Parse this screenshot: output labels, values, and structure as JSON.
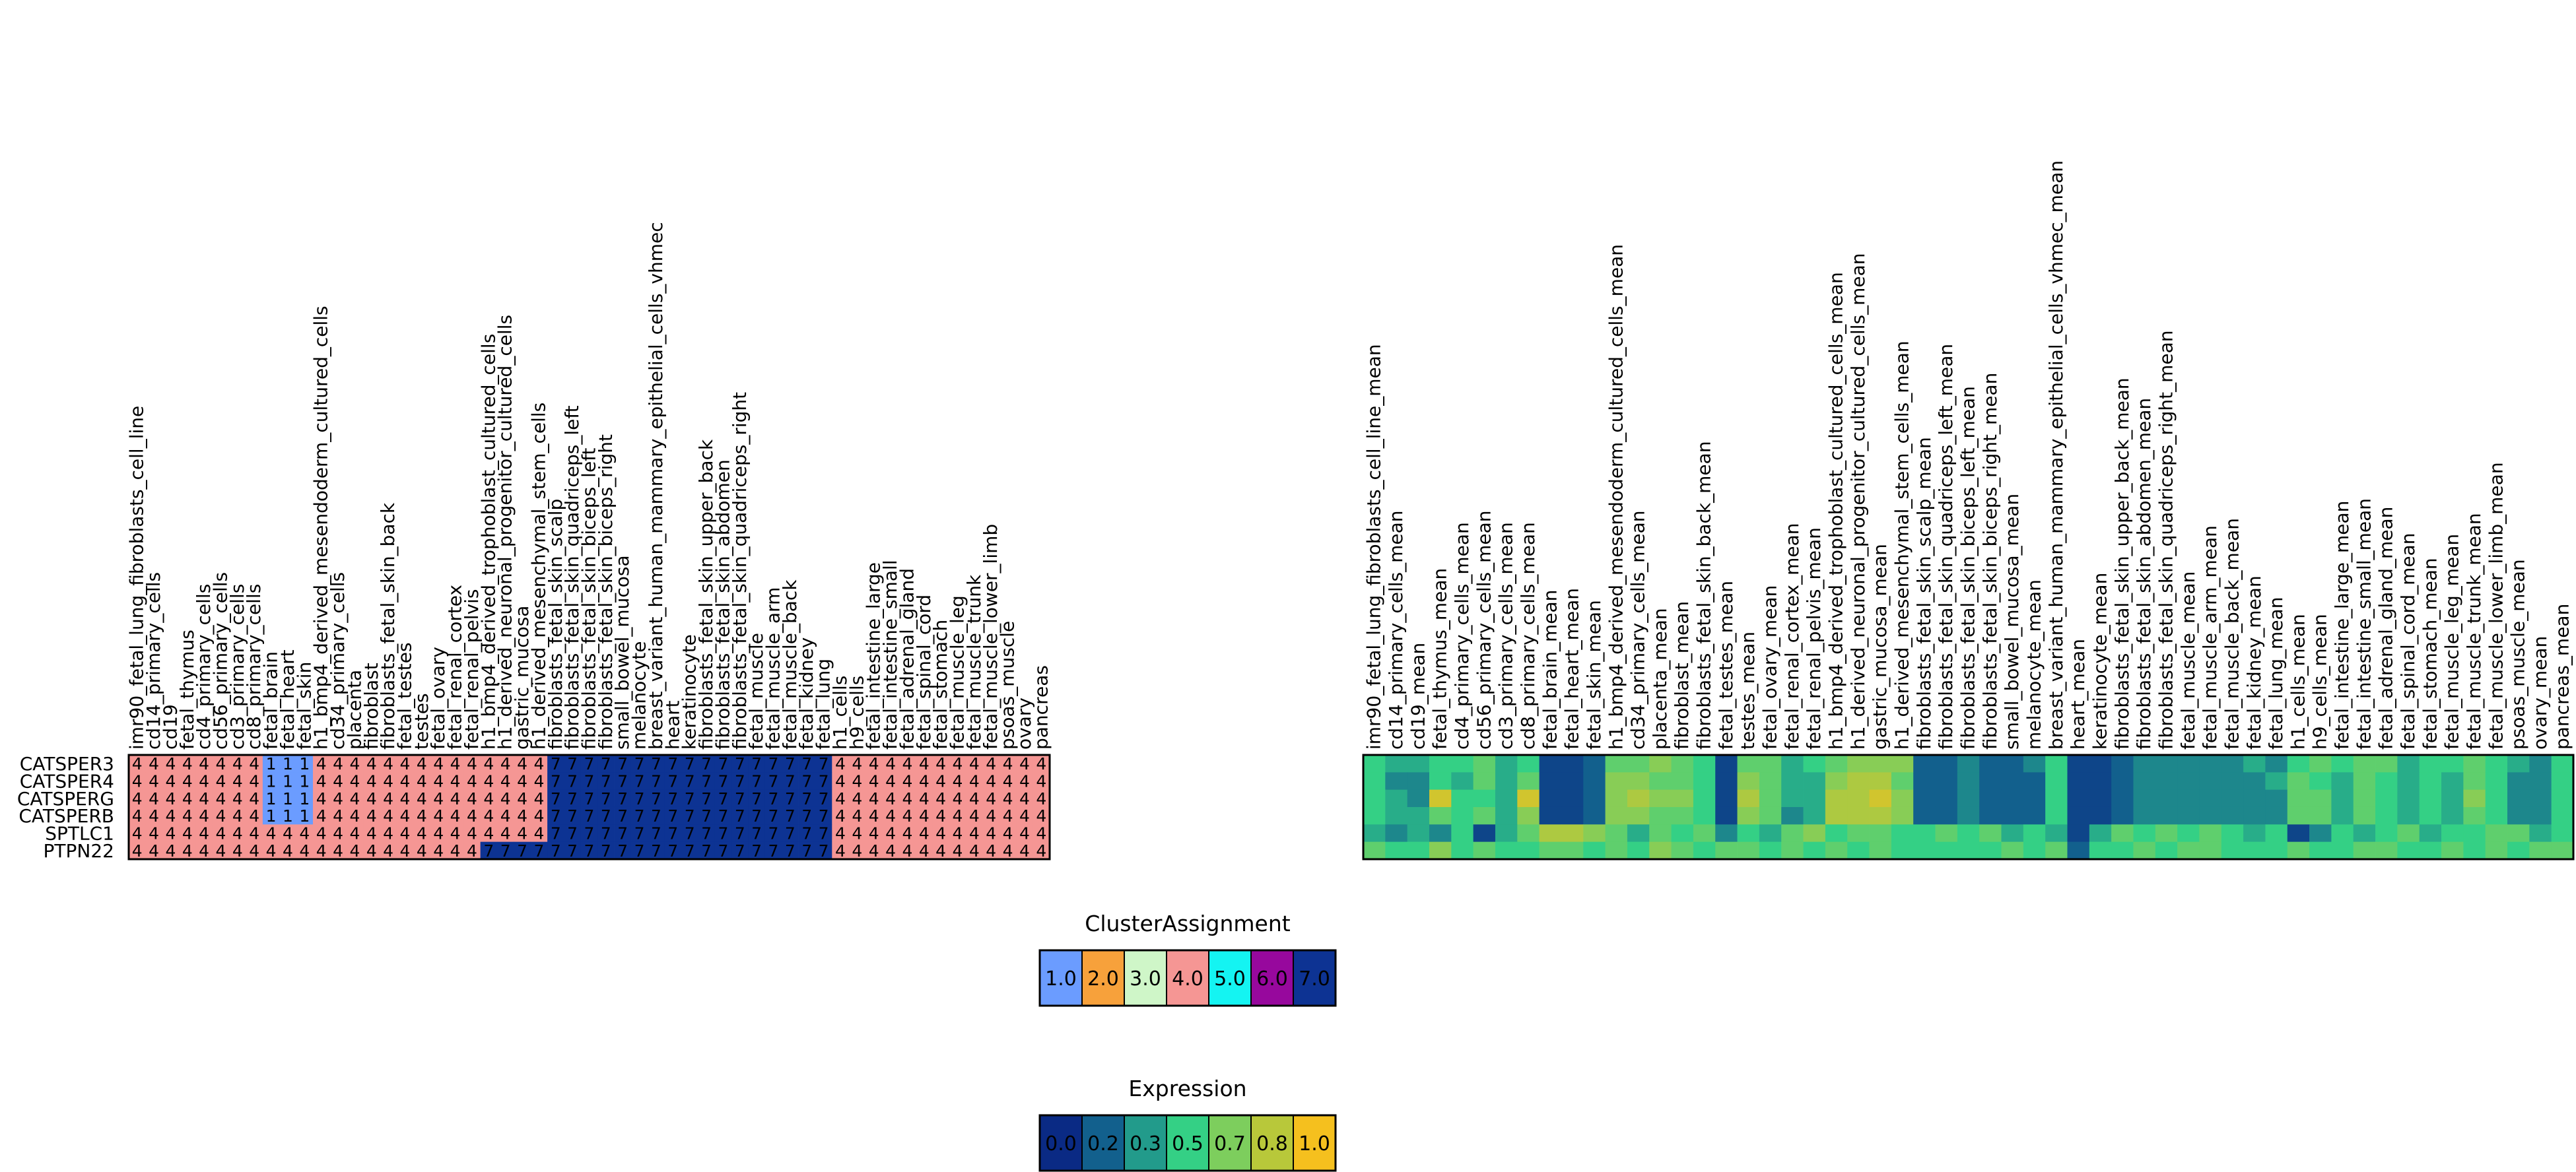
{
  "chart_data": [
    {
      "type": "heatmap",
      "title": "",
      "rows": [
        "CATSPER3",
        "CATSPER4",
        "CATSPERG",
        "CATSPERB",
        "SPTLC1",
        "PTPN22"
      ],
      "columns": [
        "imr90_fetal_lung_fibroblasts_cell_line",
        "cd14_primary_cells",
        "cd19",
        "fetal_thymus",
        "cd4_primary_cells",
        "cd56_primary_cells",
        "cd3_primary_cells",
        "cd8_primary_cells",
        "fetal_brain",
        "fetal_heart",
        "fetal_skin",
        "h1_bmp4_derived_mesendoderm_cultured_cells",
        "cd34_primary_cells",
        "placenta",
        "fibroblast",
        "fibroblasts_fetal_skin_back",
        "fetal_testes",
        "testes",
        "fetal_ovary",
        "fetal_renal_cortex",
        "fetal_renal_pelvis",
        "h1_bmp4_derived_trophoblast_cultured_cells",
        "h1_derived_neuronal_progenitor_cultured_cells",
        "gastric_mucosa",
        "h1_derived_mesenchymal_stem_cells",
        "fibroblasts_fetal_skin_scalp",
        "fibroblasts_fetal_skin_quadriceps_left",
        "fibroblasts_fetal_skin_biceps_left",
        "fibroblasts_fetal_skin_biceps_right",
        "small_bowel_mucosa",
        "melanocyte",
        "breast_variant_human_mammary_epithelial_cells_vhmec",
        "heart",
        "keratinocyte",
        "fibroblasts_fetal_skin_upper_back",
        "fibroblasts_fetal_skin_abdomen",
        "fibroblasts_fetal_skin_quadriceps_right",
        "fetal_muscle",
        "fetal_muscle_arm",
        "fetal_muscle_back",
        "fetal_kidney",
        "fetal_lung",
        "h1_cells",
        "h9_cells",
        "fetal_intestine_large",
        "fetal_intestine_small",
        "fetal_adrenal_gland",
        "fetal_spinal_cord",
        "fetal_stomach",
        "fetal_muscle_leg",
        "fetal_muscle_trunk",
        "fetal_muscle_lower_limb",
        "psoas_muscle",
        "ovary",
        "pancreas"
      ],
      "values": [
        [
          4,
          4,
          4,
          4,
          4,
          4,
          4,
          4,
          1,
          1,
          1,
          4,
          4,
          4,
          4,
          4,
          4,
          4,
          4,
          4,
          4,
          4,
          4,
          4,
          4,
          7,
          7,
          7,
          7,
          7,
          7,
          7,
          7,
          7,
          7,
          7,
          7,
          7,
          7,
          7,
          7,
          7,
          4,
          4,
          4,
          4,
          4,
          4,
          4,
          4,
          4,
          4,
          4,
          4,
          4
        ],
        [
          4,
          4,
          4,
          4,
          4,
          4,
          4,
          4,
          1,
          1,
          1,
          4,
          4,
          4,
          4,
          4,
          4,
          4,
          4,
          4,
          4,
          4,
          4,
          4,
          4,
          7,
          7,
          7,
          7,
          7,
          7,
          7,
          7,
          7,
          7,
          7,
          7,
          7,
          7,
          7,
          7,
          7,
          4,
          4,
          4,
          4,
          4,
          4,
          4,
          4,
          4,
          4,
          4,
          4,
          4
        ],
        [
          4,
          4,
          4,
          4,
          4,
          4,
          4,
          4,
          1,
          1,
          1,
          4,
          4,
          4,
          4,
          4,
          4,
          4,
          4,
          4,
          4,
          4,
          4,
          4,
          4,
          7,
          7,
          7,
          7,
          7,
          7,
          7,
          7,
          7,
          7,
          7,
          7,
          7,
          7,
          7,
          7,
          7,
          4,
          4,
          4,
          4,
          4,
          4,
          4,
          4,
          4,
          4,
          4,
          4,
          4
        ],
        [
          4,
          4,
          4,
          4,
          4,
          4,
          4,
          4,
          1,
          1,
          1,
          4,
          4,
          4,
          4,
          4,
          4,
          4,
          4,
          4,
          4,
          4,
          4,
          4,
          4,
          7,
          7,
          7,
          7,
          7,
          7,
          7,
          7,
          7,
          7,
          7,
          7,
          7,
          7,
          7,
          7,
          7,
          4,
          4,
          4,
          4,
          4,
          4,
          4,
          4,
          4,
          4,
          4,
          4,
          4
        ],
        [
          4,
          4,
          4,
          4,
          4,
          4,
          4,
          4,
          4,
          4,
          4,
          4,
          4,
          4,
          4,
          4,
          4,
          4,
          4,
          4,
          4,
          4,
          4,
          4,
          4,
          7,
          7,
          7,
          7,
          7,
          7,
          7,
          7,
          7,
          7,
          7,
          7,
          7,
          7,
          7,
          7,
          7,
          4,
          4,
          4,
          4,
          4,
          4,
          4,
          4,
          4,
          4,
          4,
          4,
          4
        ],
        [
          4,
          4,
          4,
          4,
          4,
          4,
          4,
          4,
          4,
          4,
          4,
          4,
          4,
          4,
          4,
          4,
          4,
          4,
          4,
          4,
          4,
          7,
          7,
          7,
          7,
          7,
          7,
          7,
          7,
          7,
          7,
          7,
          7,
          7,
          7,
          7,
          7,
          7,
          7,
          7,
          7,
          7,
          4,
          4,
          4,
          4,
          4,
          4,
          4,
          4,
          4,
          4,
          4,
          4,
          4
        ]
      ],
      "cell_labels": "values"
    },
    {
      "type": "heatmap",
      "title": "",
      "rows": [
        "CATSPER3",
        "CATSPER4",
        "CATSPERG",
        "CATSPERB",
        "SPTLC1",
        "PTPN22"
      ],
      "columns": [
        "imr90_fetal_lung_fibroblasts_cell_line_mean",
        "cd14_primary_cells_mean",
        "cd19_mean",
        "fetal_thymus_mean",
        "cd4_primary_cells_mean",
        "cd56_primary_cells_mean",
        "cd3_primary_cells_mean",
        "cd8_primary_cells_mean",
        "fetal_brain_mean",
        "fetal_heart_mean",
        "fetal_skin_mean",
        "h1_bmp4_derived_mesendoderm_cultured_cells_mean",
        "cd34_primary_cells_mean",
        "placenta_mean",
        "fibroblast_mean",
        "fibroblasts_fetal_skin_back_mean",
        "fetal_testes_mean",
        "testes_mean",
        "fetal_ovary_mean",
        "fetal_renal_cortex_mean",
        "fetal_renal_pelvis_mean",
        "h1_bmp4_derived_trophoblast_cultured_cells_mean",
        "h1_derived_neuronal_progenitor_cultured_cells_mean",
        "gastric_mucosa_mean",
        "h1_derived_mesenchymal_stem_cells_mean",
        "fibroblasts_fetal_skin_scalp_mean",
        "fibroblasts_fetal_skin_quadriceps_left_mean",
        "fibroblasts_fetal_skin_biceps_left_mean",
        "fibroblasts_fetal_skin_biceps_right_mean",
        "small_bowel_mucosa_mean",
        "melanocyte_mean",
        "breast_variant_human_mammary_epithelial_cells_vhmec_mean",
        "heart_mean",
        "keratinocyte_mean",
        "fibroblasts_fetal_skin_upper_back_mean",
        "fibroblasts_fetal_skin_abdomen_mean",
        "fibroblasts_fetal_skin_quadriceps_right_mean",
        "fetal_muscle_mean",
        "fetal_muscle_arm_mean",
        "fetal_muscle_back_mean",
        "fetal_kidney_mean",
        "fetal_lung_mean",
        "h1_cells_mean",
        "h9_cells_mean",
        "fetal_intestine_large_mean",
        "fetal_intestine_small_mean",
        "fetal_adrenal_gland_mean",
        "fetal_spinal_cord_mean",
        "fetal_stomach_mean",
        "fetal_muscle_leg_mean",
        "fetal_muscle_trunk_mean",
        "fetal_muscle_lower_limb_mean",
        "psoas_muscle_mean",
        "ovary_mean",
        "pancreas_mean"
      ],
      "values": [
        [
          0.5,
          0.4,
          0.4,
          0.5,
          0.5,
          0.6,
          0.4,
          0.5,
          0.1,
          0.1,
          0.2,
          0.6,
          0.6,
          0.7,
          0.6,
          0.5,
          0.1,
          0.6,
          0.6,
          0.4,
          0.5,
          0.6,
          0.7,
          0.7,
          0.7,
          0.2,
          0.2,
          0.3,
          0.2,
          0.2,
          0.3,
          0.5,
          0.1,
          0.1,
          0.2,
          0.3,
          0.3,
          0.3,
          0.3,
          0.3,
          0.4,
          0.3,
          0.5,
          0.6,
          0.5,
          0.6,
          0.6,
          0.4,
          0.5,
          0.5,
          0.6,
          0.5,
          0.4,
          0.3,
          0.5
        ],
        [
          0.5,
          0.3,
          0.3,
          0.5,
          0.4,
          0.6,
          0.4,
          0.6,
          0.1,
          0.1,
          0.2,
          0.7,
          0.7,
          0.6,
          0.6,
          0.5,
          0.1,
          0.7,
          0.6,
          0.4,
          0.4,
          0.7,
          0.8,
          0.8,
          0.6,
          0.2,
          0.2,
          0.3,
          0.2,
          0.2,
          0.2,
          0.5,
          0.1,
          0.1,
          0.2,
          0.3,
          0.3,
          0.3,
          0.3,
          0.3,
          0.3,
          0.4,
          0.6,
          0.5,
          0.4,
          0.6,
          0.5,
          0.4,
          0.5,
          0.4,
          0.6,
          0.5,
          0.3,
          0.3,
          0.5
        ],
        [
          0.5,
          0.4,
          0.3,
          0.9,
          0.5,
          0.5,
          0.4,
          0.9,
          0.1,
          0.1,
          0.2,
          0.7,
          0.8,
          0.7,
          0.7,
          0.5,
          0.1,
          0.8,
          0.6,
          0.4,
          0.4,
          0.8,
          0.8,
          0.9,
          0.7,
          0.2,
          0.2,
          0.3,
          0.2,
          0.2,
          0.2,
          0.5,
          0.1,
          0.1,
          0.2,
          0.3,
          0.3,
          0.3,
          0.3,
          0.3,
          0.3,
          0.3,
          0.6,
          0.6,
          0.4,
          0.6,
          0.5,
          0.4,
          0.5,
          0.4,
          0.7,
          0.5,
          0.3,
          0.3,
          0.5
        ],
        [
          0.5,
          0.4,
          0.4,
          0.6,
          0.5,
          0.6,
          0.4,
          0.7,
          0.1,
          0.1,
          0.2,
          0.7,
          0.7,
          0.6,
          0.6,
          0.5,
          0.1,
          0.7,
          0.6,
          0.3,
          0.4,
          0.8,
          0.8,
          0.8,
          0.7,
          0.2,
          0.2,
          0.3,
          0.2,
          0.2,
          0.2,
          0.5,
          0.1,
          0.1,
          0.2,
          0.3,
          0.3,
          0.3,
          0.3,
          0.3,
          0.3,
          0.3,
          0.6,
          0.6,
          0.4,
          0.6,
          0.5,
          0.4,
          0.5,
          0.4,
          0.6,
          0.5,
          0.3,
          0.3,
          0.5
        ],
        [
          0.4,
          0.3,
          0.4,
          0.3,
          0.5,
          0.1,
          0.4,
          0.6,
          0.8,
          0.8,
          0.7,
          0.6,
          0.4,
          0.6,
          0.5,
          0.6,
          0.3,
          0.5,
          0.4,
          0.6,
          0.7,
          0.5,
          0.6,
          0.6,
          0.5,
          0.5,
          0.6,
          0.5,
          0.6,
          0.4,
          0.5,
          0.4,
          0.1,
          0.4,
          0.6,
          0.5,
          0.6,
          0.5,
          0.6,
          0.5,
          0.4,
          0.5,
          0.1,
          0.3,
          0.5,
          0.4,
          0.5,
          0.6,
          0.4,
          0.5,
          0.5,
          0.6,
          0.6,
          0.4,
          0.5
        ],
        [
          0.6,
          0.5,
          0.5,
          0.7,
          0.5,
          0.6,
          0.5,
          0.5,
          0.6,
          0.6,
          0.5,
          0.6,
          0.5,
          0.7,
          0.6,
          0.5,
          0.6,
          0.6,
          0.5,
          0.6,
          0.5,
          0.6,
          0.5,
          0.6,
          0.5,
          0.5,
          0.5,
          0.5,
          0.5,
          0.6,
          0.5,
          0.6,
          0.2,
          0.5,
          0.5,
          0.6,
          0.5,
          0.6,
          0.6,
          0.5,
          0.5,
          0.5,
          0.6,
          0.5,
          0.5,
          0.6,
          0.6,
          0.5,
          0.5,
          0.6,
          0.5,
          0.6,
          0.5,
          0.6,
          0.6
        ]
      ],
      "colorscale": "viridis-like",
      "vmin": 0,
      "vmax": 1
    }
  ],
  "legends": {
    "cluster": {
      "title": "ClusterAssignment",
      "entries": [
        {
          "label": "1.0",
          "color": "#6b9cff"
        },
        {
          "label": "2.0",
          "color": "#f7a13b"
        },
        {
          "label": "3.0",
          "color": "#cff6c8"
        },
        {
          "label": "4.0",
          "color": "#f59694"
        },
        {
          "label": "5.0",
          "color": "#14f4f2"
        },
        {
          "label": "6.0",
          "color": "#97089d"
        },
        {
          "label": "7.0",
          "color": "#0d3393"
        }
      ]
    },
    "expression": {
      "title": "Expression",
      "entries": [
        {
          "label": "0.0",
          "color": "#0a2a84"
        },
        {
          "label": "0.2",
          "color": "#12608d"
        },
        {
          "label": "0.3",
          "color": "#229b8b"
        },
        {
          "label": "0.5",
          "color": "#34d085"
        },
        {
          "label": "0.7",
          "color": "#7dce5d"
        },
        {
          "label": "0.8",
          "color": "#b8c83a"
        },
        {
          "label": "1.0",
          "color": "#f5c01e"
        }
      ]
    }
  }
}
